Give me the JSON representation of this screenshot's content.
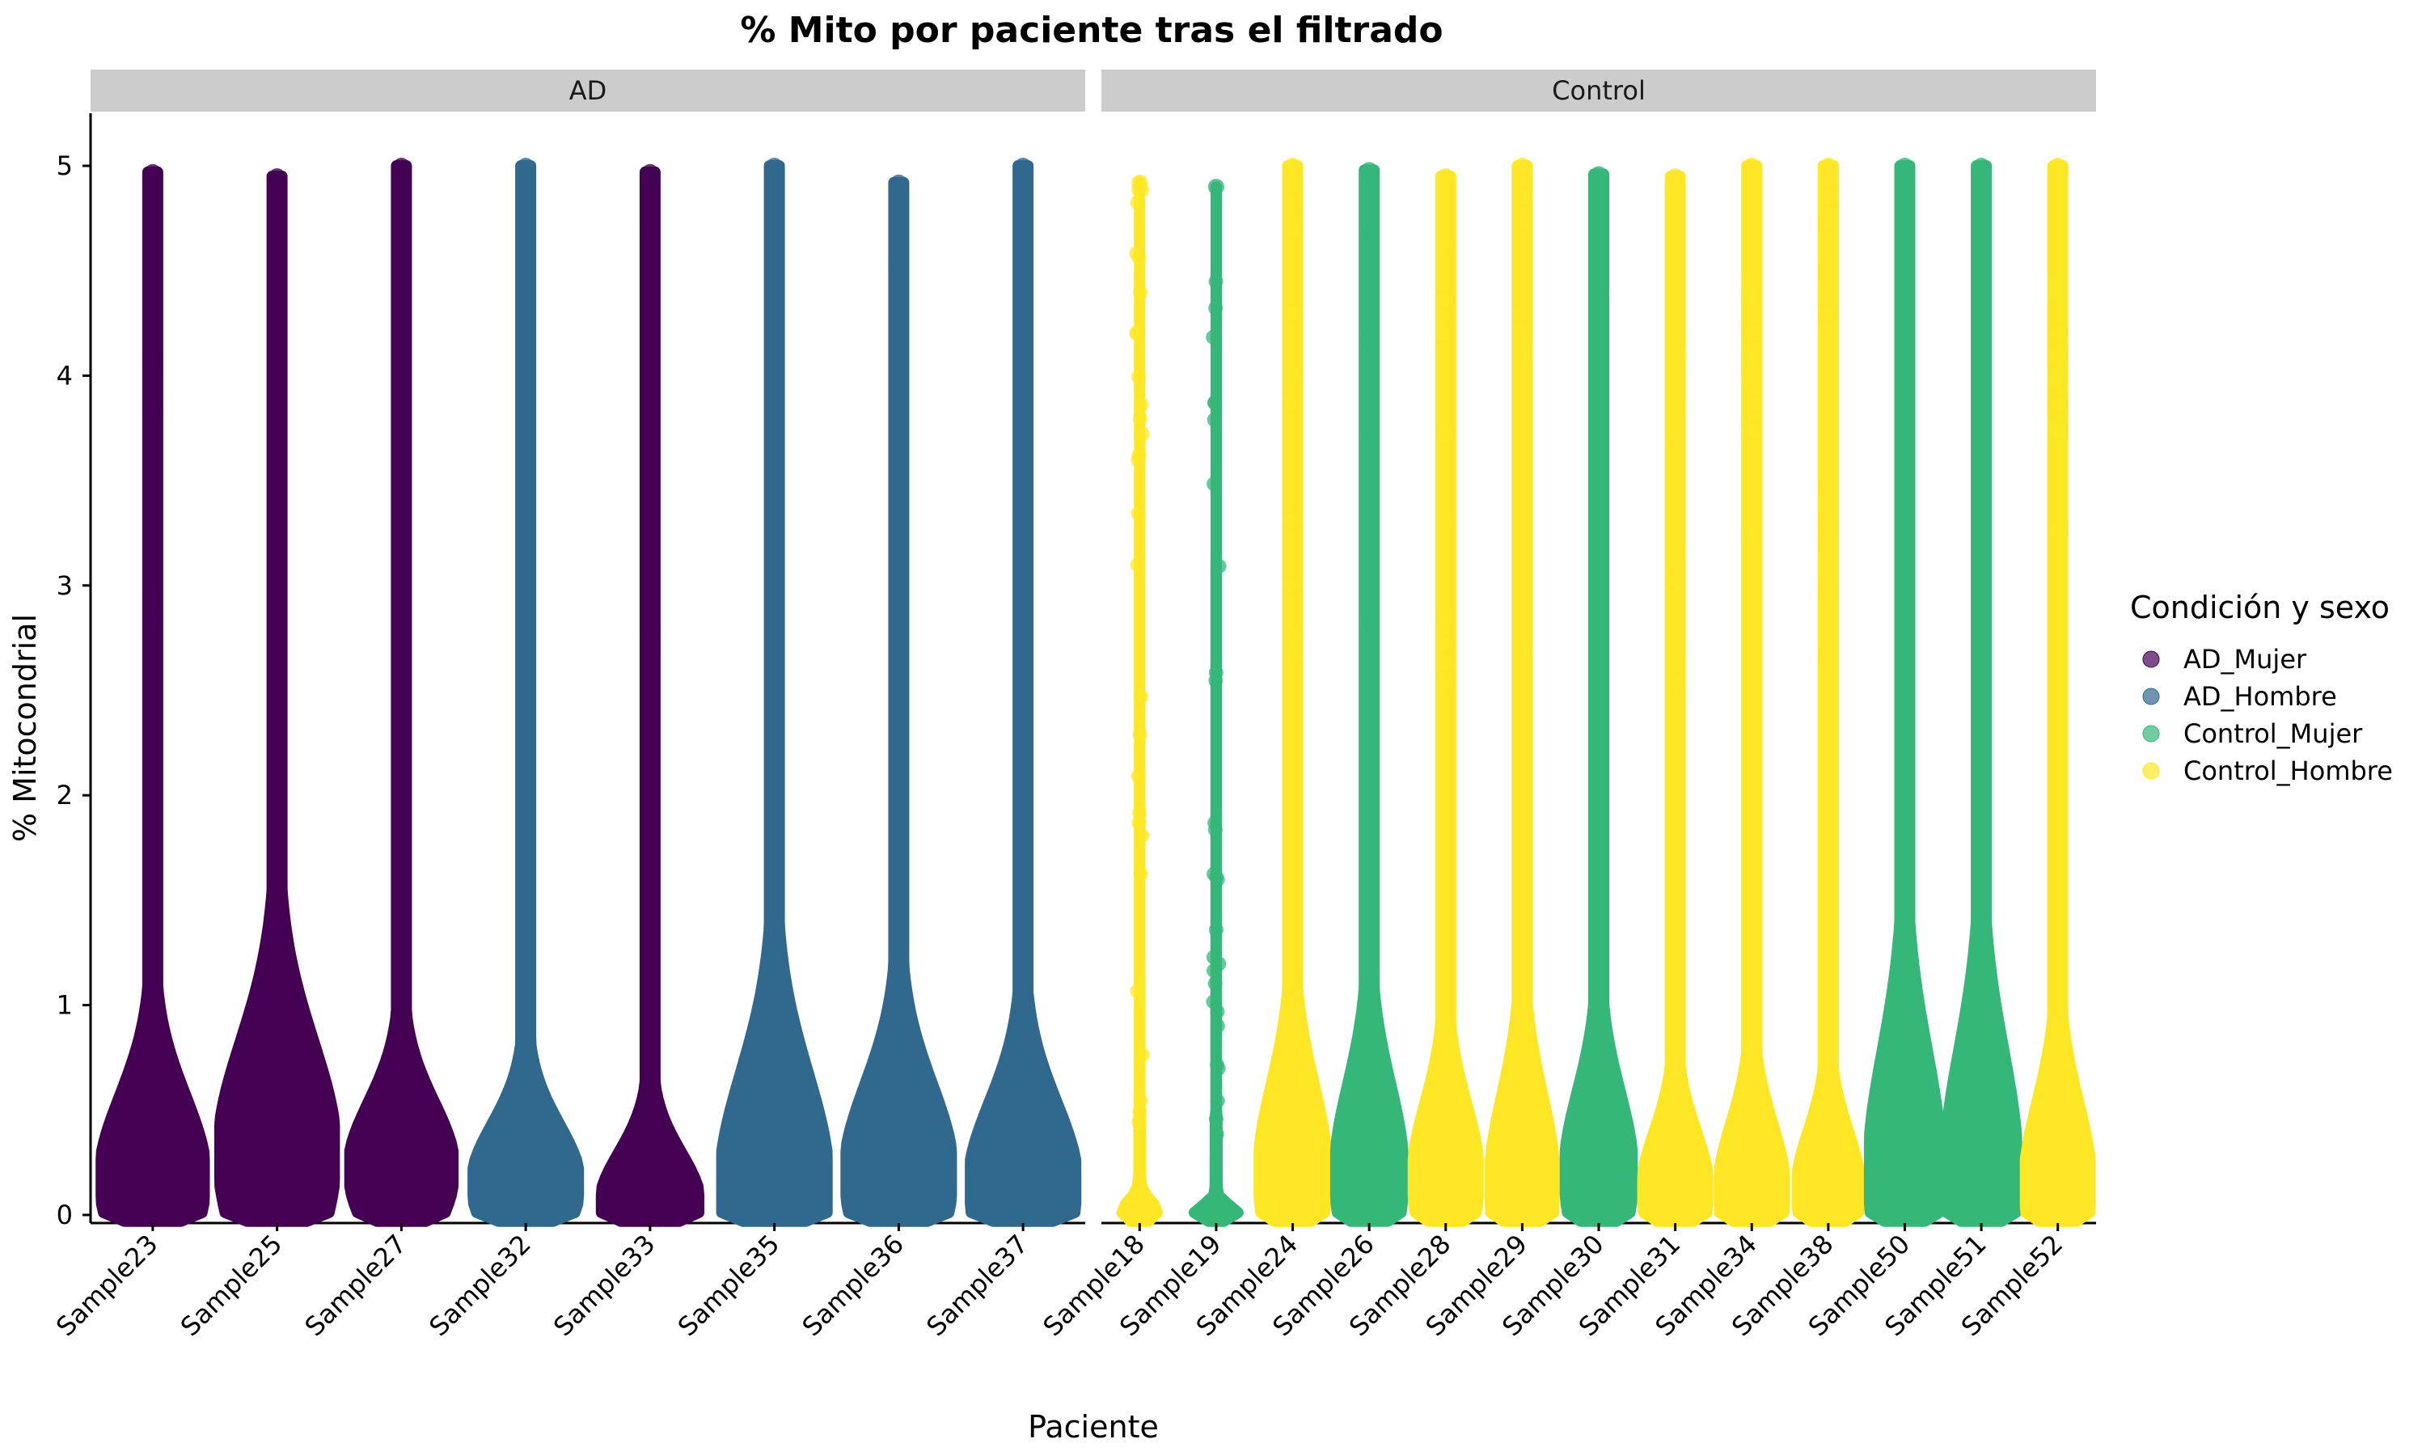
{
  "chart_data": {
    "type": "violin",
    "title": "% Mito por paciente tras el filtrado",
    "xlabel": "Paciente",
    "ylabel": "% Mitocondrial",
    "ylim": [
      -0.25,
      5.25
    ],
    "yticks": [
      0,
      1,
      2,
      3,
      4,
      5
    ],
    "grid": false,
    "legend": {
      "title": "Condición y sexo",
      "position": "right",
      "entries": [
        {
          "label": "AD_Mujer",
          "color": "#440154"
        },
        {
          "label": "AD_Hombre",
          "color": "#31688e"
        },
        {
          "label": "Control_Mujer",
          "color": "#35b779"
        },
        {
          "label": "Control_Hombre",
          "color": "#fde725"
        }
      ]
    },
    "facets": [
      {
        "label": "AD",
        "samples": [
          {
            "name": "Sample23",
            "group": "AD_Mujer",
            "max": 4.97
          },
          {
            "name": "Sample25",
            "group": "AD_Mujer",
            "max": 4.95
          },
          {
            "name": "Sample27",
            "group": "AD_Mujer",
            "max": 5.0
          },
          {
            "name": "Sample32",
            "group": "AD_Hombre",
            "max": 5.0
          },
          {
            "name": "Sample33",
            "group": "AD_Mujer",
            "max": 4.97
          },
          {
            "name": "Sample35",
            "group": "AD_Hombre",
            "max": 5.0
          },
          {
            "name": "Sample36",
            "group": "AD_Hombre",
            "max": 4.92
          },
          {
            "name": "Sample37",
            "group": "AD_Hombre",
            "max": 5.0
          }
        ]
      },
      {
        "label": "Control",
        "samples": [
          {
            "name": "Sample18",
            "group": "Control_Hombre",
            "max": 4.92
          },
          {
            "name": "Sample19",
            "group": "Control_Mujer",
            "max": 4.9
          },
          {
            "name": "Sample24",
            "group": "Control_Hombre",
            "max": 5.0
          },
          {
            "name": "Sample26",
            "group": "Control_Mujer",
            "max": 4.98
          },
          {
            "name": "Sample28",
            "group": "Control_Hombre",
            "max": 4.95
          },
          {
            "name": "Sample29",
            "group": "Control_Hombre",
            "max": 5.0
          },
          {
            "name": "Sample30",
            "group": "Control_Mujer",
            "max": 4.96
          },
          {
            "name": "Sample31",
            "group": "Control_Hombre",
            "max": 4.95
          },
          {
            "name": "Sample34",
            "group": "Control_Hombre",
            "max": 5.0
          },
          {
            "name": "Sample38",
            "group": "Control_Hombre",
            "max": 5.0
          },
          {
            "name": "Sample50",
            "group": "Control_Mujer",
            "max": 5.0
          },
          {
            "name": "Sample51",
            "group": "Control_Mujer",
            "max": 5.0
          },
          {
            "name": "Sample52",
            "group": "Control_Hombre",
            "max": 5.0
          }
        ]
      }
    ]
  }
}
